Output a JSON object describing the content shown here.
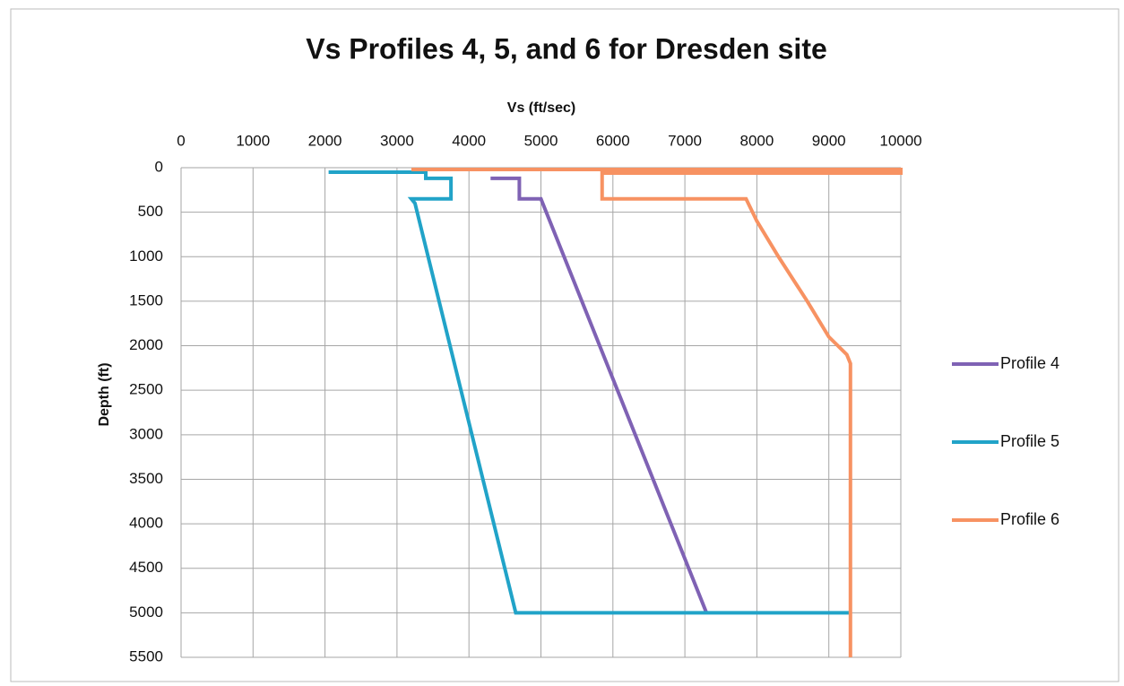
{
  "chart_data": {
    "type": "line",
    "title": "Vs Profiles 4, 5, and 6 for Dresden site",
    "x_label": "Vs (ft/sec)",
    "y_label": "Depth (ft)",
    "xlim": [
      0,
      10000
    ],
    "xticks": [
      0,
      1000,
      2000,
      3000,
      4000,
      5000,
      6000,
      7000,
      8000,
      9000,
      10000
    ],
    "ylim": [
      0,
      5500
    ],
    "yticks": [
      0,
      500,
      1000,
      1500,
      2000,
      2500,
      3000,
      3500,
      4000,
      4500,
      5000,
      5500
    ],
    "y_reversed": true,
    "x_axis_position": "top",
    "grid": true,
    "legend": "right",
    "series": [
      {
        "name": "Profile 4",
        "color": "#7f62b4",
        "x": [
          4300,
          4700,
          4700,
          5000,
          7300
        ],
        "values": [
          120,
          120,
          350,
          350,
          5000
        ]
      },
      {
        "name": "Profile 5",
        "color": "#21a3c8",
        "x": [
          2050,
          3400,
          3400,
          3750,
          3750,
          3200,
          3250,
          4650,
          9300
        ],
        "values": [
          50,
          50,
          120,
          120,
          350,
          350,
          400,
          5000,
          5000
        ]
      },
      {
        "name": "Profile 6",
        "color": "#f79262",
        "x": [
          3200,
          10000,
          10000,
          5850,
          5850,
          7850,
          8000,
          8300,
          8700,
          9000,
          9250,
          9300,
          9300
        ],
        "values": [
          20,
          20,
          60,
          60,
          350,
          350,
          600,
          1000,
          1500,
          1900,
          2100,
          2200,
          5500
        ]
      }
    ]
  }
}
